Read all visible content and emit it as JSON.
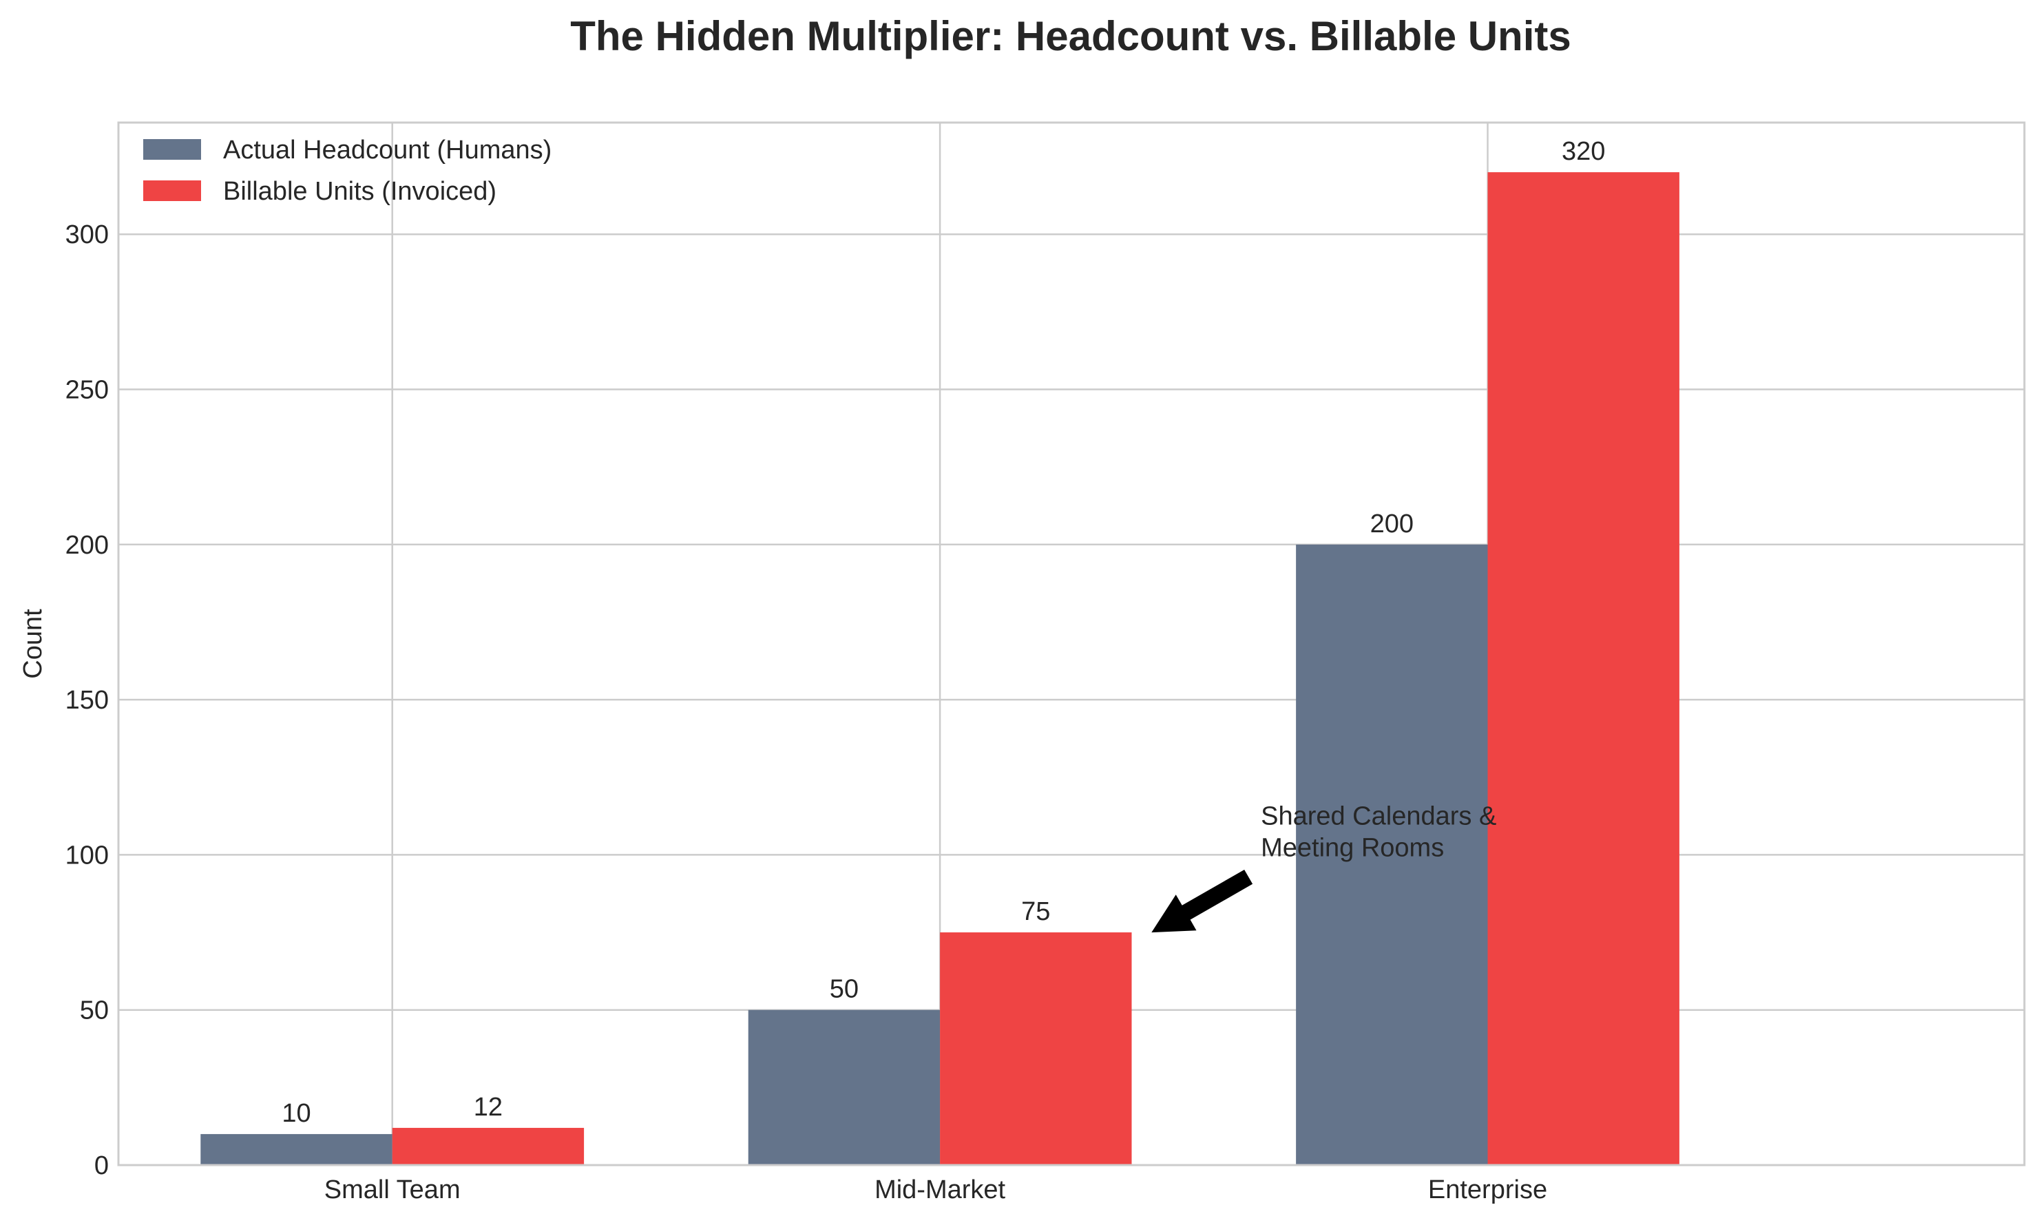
{
  "chart_data": {
    "type": "bar",
    "title": "The Hidden Multiplier: Headcount vs. Billable Units",
    "xlabel": "",
    "ylabel": "Count",
    "categories": [
      "Small Team",
      "Mid-Market",
      "Enterprise"
    ],
    "series": [
      {
        "name": "Actual Headcount (Humans)",
        "color": "#64748b",
        "values": [
          10,
          50,
          200
        ]
      },
      {
        "name": "Billable Units (Invoiced)",
        "color": "#ef4444",
        "values": [
          12,
          75,
          320
        ]
      }
    ],
    "ylim": [
      0,
      336
    ],
    "yticks": [
      0,
      50,
      100,
      150,
      200,
      250,
      300
    ],
    "grid": true,
    "legend_position": "top-left",
    "annotation": {
      "lines": [
        "Shared Calendars &",
        "Meeting Rooms"
      ],
      "target_category": "Mid-Market",
      "target_series": "Billable Units (Invoiced)",
      "target_value": 75
    }
  }
}
